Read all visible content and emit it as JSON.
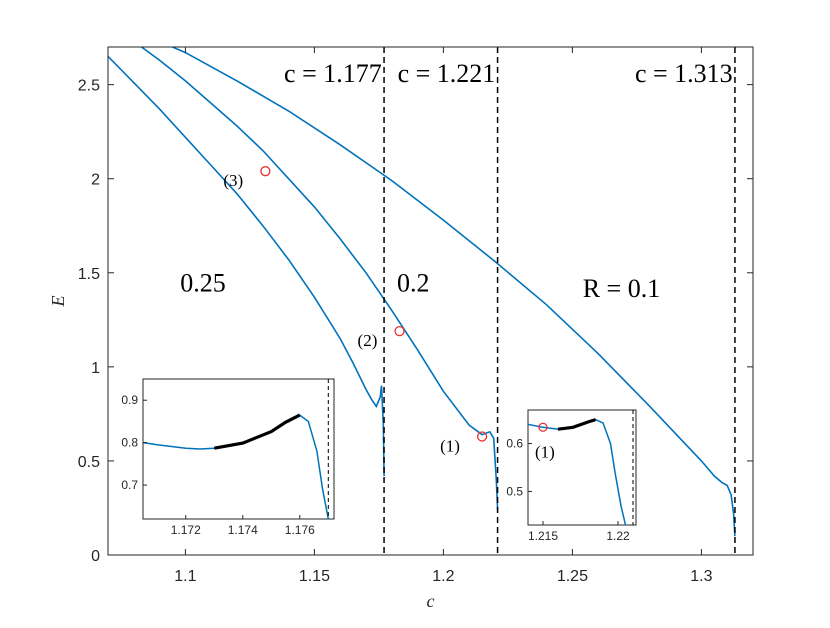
{
  "chart_data": {
    "type": "line",
    "xlabel": "c",
    "ylabel": "E",
    "xlim": [
      1.07,
      1.32
    ],
    "ylim": [
      0,
      2.7
    ],
    "x_ticks": [
      "1.1",
      "1.15",
      "1.2",
      "1.25",
      "1.3"
    ],
    "y_ticks": [
      "0",
      "0.5",
      "1",
      "1.5",
      "2",
      "2.5"
    ],
    "line_color": "#0072BD",
    "marker_color": "#E8302F",
    "grid": false,
    "series": [
      {
        "name": "0.25",
        "x": [
          1.07,
          1.08,
          1.09,
          1.1,
          1.11,
          1.12,
          1.13,
          1.14,
          1.15,
          1.16,
          1.165,
          1.17,
          1.172,
          1.174,
          1.1755,
          1.176,
          1.1767,
          1.177
        ],
        "y": [
          2.65,
          2.51,
          2.37,
          2.22,
          2.07,
          1.92,
          1.75,
          1.57,
          1.37,
          1.15,
          1.02,
          0.88,
          0.83,
          0.79,
          0.84,
          0.9,
          0.7,
          0.42
        ]
      },
      {
        "name": "0.2",
        "x": [
          1.083,
          1.09,
          1.1,
          1.11,
          1.12,
          1.13,
          1.14,
          1.15,
          1.16,
          1.17,
          1.18,
          1.19,
          1.2,
          1.21,
          1.215,
          1.218,
          1.2195,
          1.2205,
          1.221
        ],
        "y": [
          2.7,
          2.63,
          2.52,
          2.4,
          2.28,
          2.15,
          2.0,
          1.85,
          1.68,
          1.5,
          1.3,
          1.09,
          0.87,
          0.69,
          0.64,
          0.655,
          0.62,
          0.4,
          0.24
        ]
      },
      {
        "name": "R = 0.1",
        "x": [
          1.095,
          1.1,
          1.12,
          1.14,
          1.16,
          1.18,
          1.2,
          1.22,
          1.24,
          1.26,
          1.28,
          1.3,
          1.305,
          1.308,
          1.31,
          1.3115,
          1.3125,
          1.313
        ],
        "y": [
          2.7,
          2.67,
          2.52,
          2.36,
          2.18,
          1.99,
          1.78,
          1.56,
          1.33,
          1.07,
          0.79,
          0.5,
          0.42,
          0.385,
          0.37,
          0.32,
          0.22,
          0.1
        ]
      }
    ],
    "vlines": [
      {
        "x": 1.177,
        "label": "c = 1.177"
      },
      {
        "x": 1.221,
        "label": "c = 1.221"
      },
      {
        "x": 1.313,
        "label": "c = 1.313"
      }
    ],
    "markers": [
      {
        "label": "(3)",
        "x": 1.131,
        "y": 2.04
      },
      {
        "label": "(2)",
        "x": 1.183,
        "y": 1.19
      },
      {
        "label": "(1)",
        "x": 1.215,
        "y": 0.63
      }
    ],
    "curve_labels": [
      {
        "text": "0.25",
        "x": 1.098,
        "y": 1.4
      },
      {
        "text": "0.2",
        "x": 1.182,
        "y": 1.4
      },
      {
        "text": "R = 0.1",
        "x": 1.254,
        "y": 1.37
      }
    ],
    "insets": [
      {
        "xlim": [
          1.1705,
          1.1772
        ],
        "ylim": [
          0.62,
          0.95
        ],
        "x_ticks": [
          "1.172",
          "1.174",
          "1.176"
        ],
        "y_ticks": [
          "0.7",
          "0.8",
          "0.9"
        ],
        "vline_x": 1.177,
        "curve_x": [
          1.1705,
          1.171,
          1.172,
          1.1725,
          1.173,
          1.174,
          1.175,
          1.1755,
          1.176,
          1.1763,
          1.1766,
          1.1768,
          1.177
        ],
        "curve_y": [
          0.8,
          0.795,
          0.787,
          0.785,
          0.787,
          0.799,
          0.826,
          0.848,
          0.865,
          0.85,
          0.78,
          0.69,
          0.62
        ],
        "bold_x": [
          1.173,
          1.174,
          1.175,
          1.1755,
          1.176
        ],
        "bold_y": [
          0.787,
          0.799,
          0.826,
          0.848,
          0.865
        ]
      },
      {
        "xlim": [
          1.214,
          1.2212
        ],
        "ylim": [
          0.43,
          0.67
        ],
        "x_ticks": [
          "1.215",
          "1.22"
        ],
        "y_ticks": [
          "0.5",
          "0.6"
        ],
        "vline_x": 1.221,
        "curve_x": [
          1.214,
          1.215,
          1.216,
          1.217,
          1.218,
          1.2185,
          1.219,
          1.2195,
          1.2198,
          1.2202,
          1.2205
        ],
        "curve_y": [
          0.64,
          0.634,
          0.63,
          0.634,
          0.645,
          0.65,
          0.643,
          0.6,
          0.54,
          0.47,
          0.43
        ],
        "bold_x": [
          1.216,
          1.217,
          1.218,
          1.2185
        ],
        "bold_y": [
          0.63,
          0.634,
          0.645,
          0.65
        ],
        "marker": {
          "label": "(1)",
          "x": 1.215,
          "y": 0.634
        }
      }
    ]
  }
}
